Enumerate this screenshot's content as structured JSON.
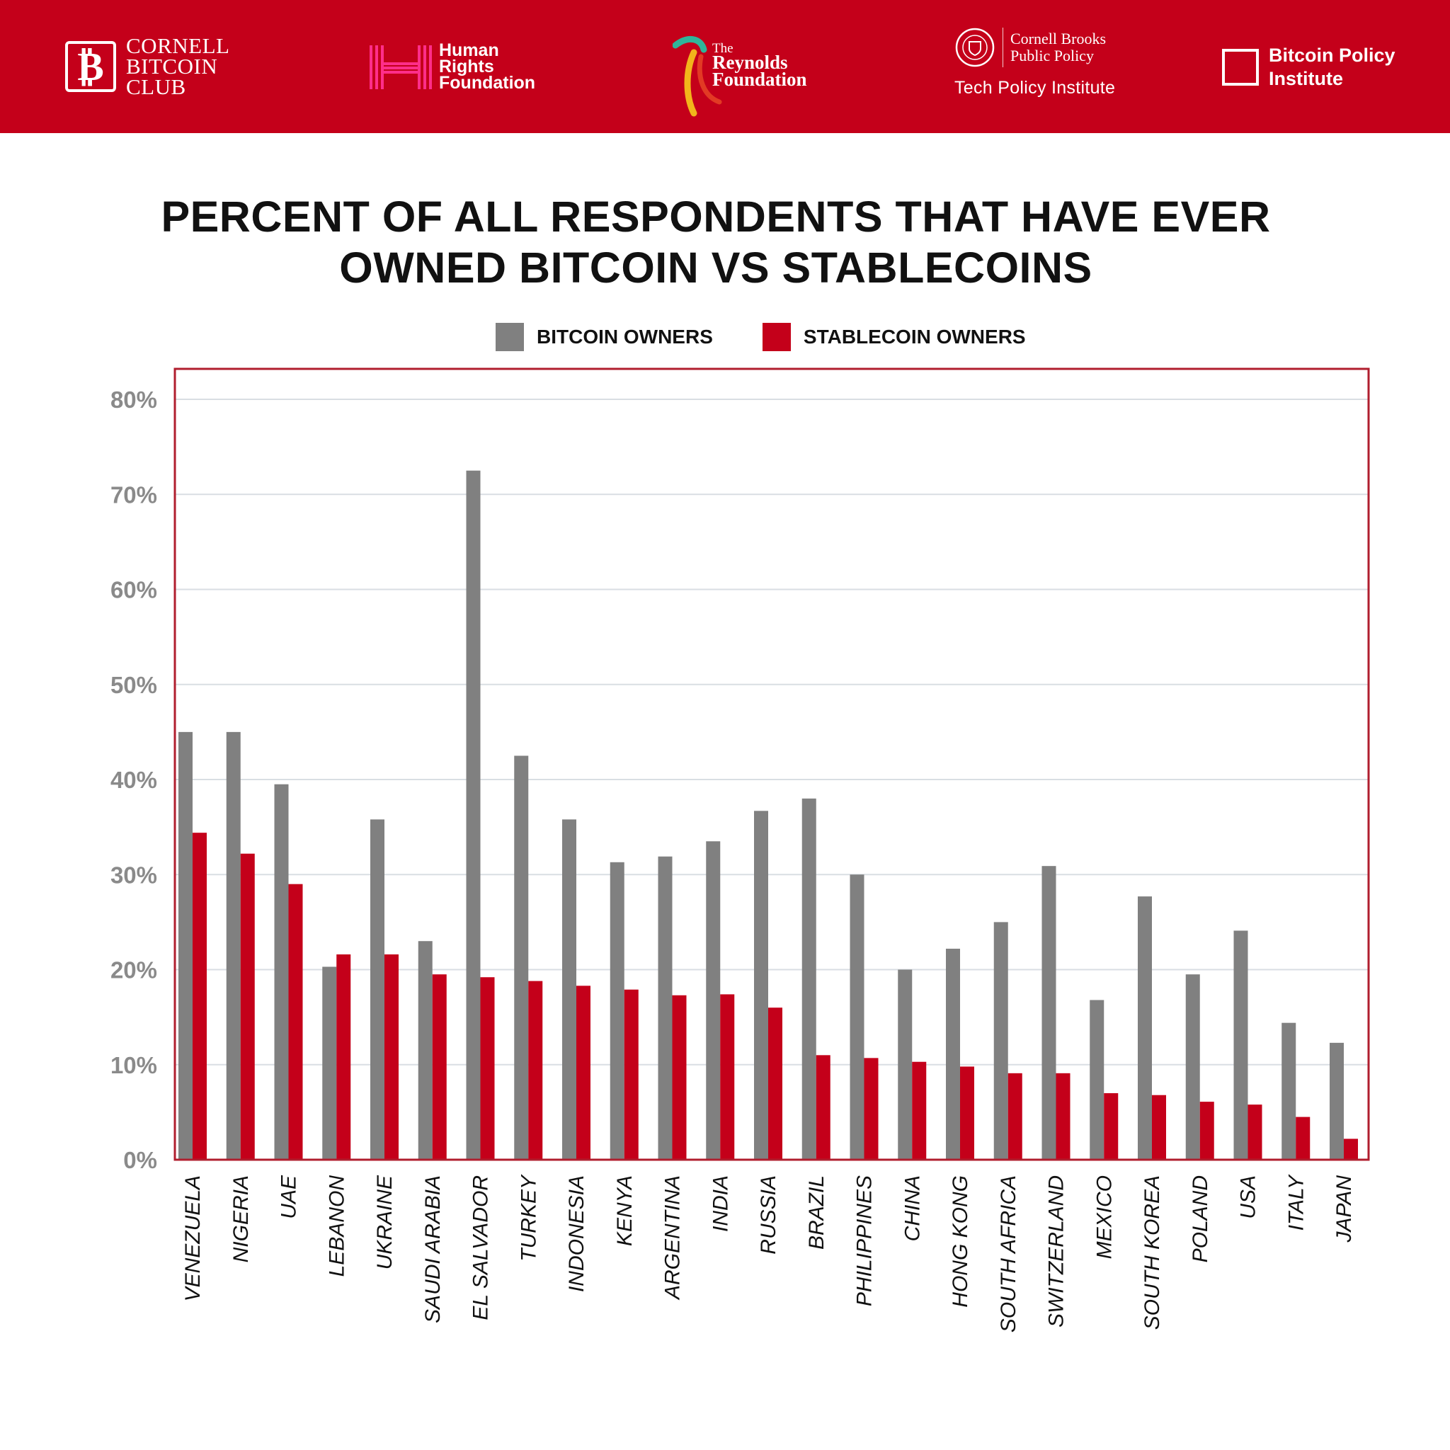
{
  "header": {
    "logos": {
      "cornell_bitcoin_club": {
        "lines": [
          "CORNELL",
          "BITCOIN",
          "CLUB"
        ]
      },
      "human_rights_foundation": {
        "lines": [
          "Human",
          "Rights",
          "Foundation"
        ]
      },
      "reynolds_foundation": {
        "small": "The",
        "lines": [
          "Reynolds",
          "Foundation"
        ]
      },
      "cornell_brooks": {
        "lines": [
          "Cornell Brooks",
          "Public Policy"
        ],
        "sub": "Tech Policy Institute"
      },
      "bitcoin_policy_institute": {
        "lines": [
          "Bitcoin Policy",
          "Institute"
        ]
      }
    }
  },
  "colors": {
    "banner": "#c4001a",
    "bitcoin": "#808080",
    "stablecoin": "#c4001a",
    "frame": "#b01e2e",
    "grid": "#d9dee3",
    "tick": "#8a8a8a"
  },
  "chart_data": {
    "type": "bar",
    "title_lines": [
      "PERCENT OF ALL RESPONDENTS THAT HAVE EVER",
      "OWNED BITCOIN VS STABLECOINS"
    ],
    "xlabel": "",
    "ylabel": "",
    "ylim": [
      0,
      80
    ],
    "yticks": [
      0,
      10,
      20,
      30,
      40,
      50,
      60,
      70,
      80
    ],
    "ytick_labels": [
      "0%",
      "10%",
      "20%",
      "30%",
      "40%",
      "50%",
      "60%",
      "70%",
      "80%"
    ],
    "grid": true,
    "legend_position": "top-center",
    "categories": [
      "VENEZUELA",
      "NIGERIA",
      "UAE",
      "LEBANON",
      "UKRAINE",
      "SAUDI ARABIA",
      "EL SALVADOR",
      "TURKEY",
      "INDONESIA",
      "KENYA",
      "ARGENTINA",
      "INDIA",
      "RUSSIA",
      "BRAZIL",
      "PHILIPPINES",
      "CHINA",
      "HONG KONG",
      "SOUTH AFRICA",
      "SWITZERLAND",
      "MEXICO",
      "SOUTH KOREA",
      "POLAND",
      "USA",
      "ITALY",
      "JAPAN"
    ],
    "series": [
      {
        "name": "BITCOIN OWNERS",
        "values": [
          45,
          45,
          39.5,
          20.3,
          35.8,
          23,
          72.5,
          42.5,
          35.8,
          31.3,
          31.9,
          33.5,
          36.7,
          38,
          30,
          20,
          22.2,
          25,
          30.9,
          16.8,
          27.7,
          19.5,
          24.1,
          14.4,
          12.3
        ]
      },
      {
        "name": "STABLECOIN OWNERS",
        "values": [
          34.4,
          32.2,
          29,
          21.6,
          21.6,
          19.5,
          19.2,
          18.8,
          18.3,
          17.9,
          17.3,
          17.4,
          16,
          11,
          10.7,
          10.3,
          9.8,
          9.1,
          9.1,
          7,
          6.8,
          6.1,
          5.8,
          4.5,
          2.2
        ]
      }
    ]
  }
}
